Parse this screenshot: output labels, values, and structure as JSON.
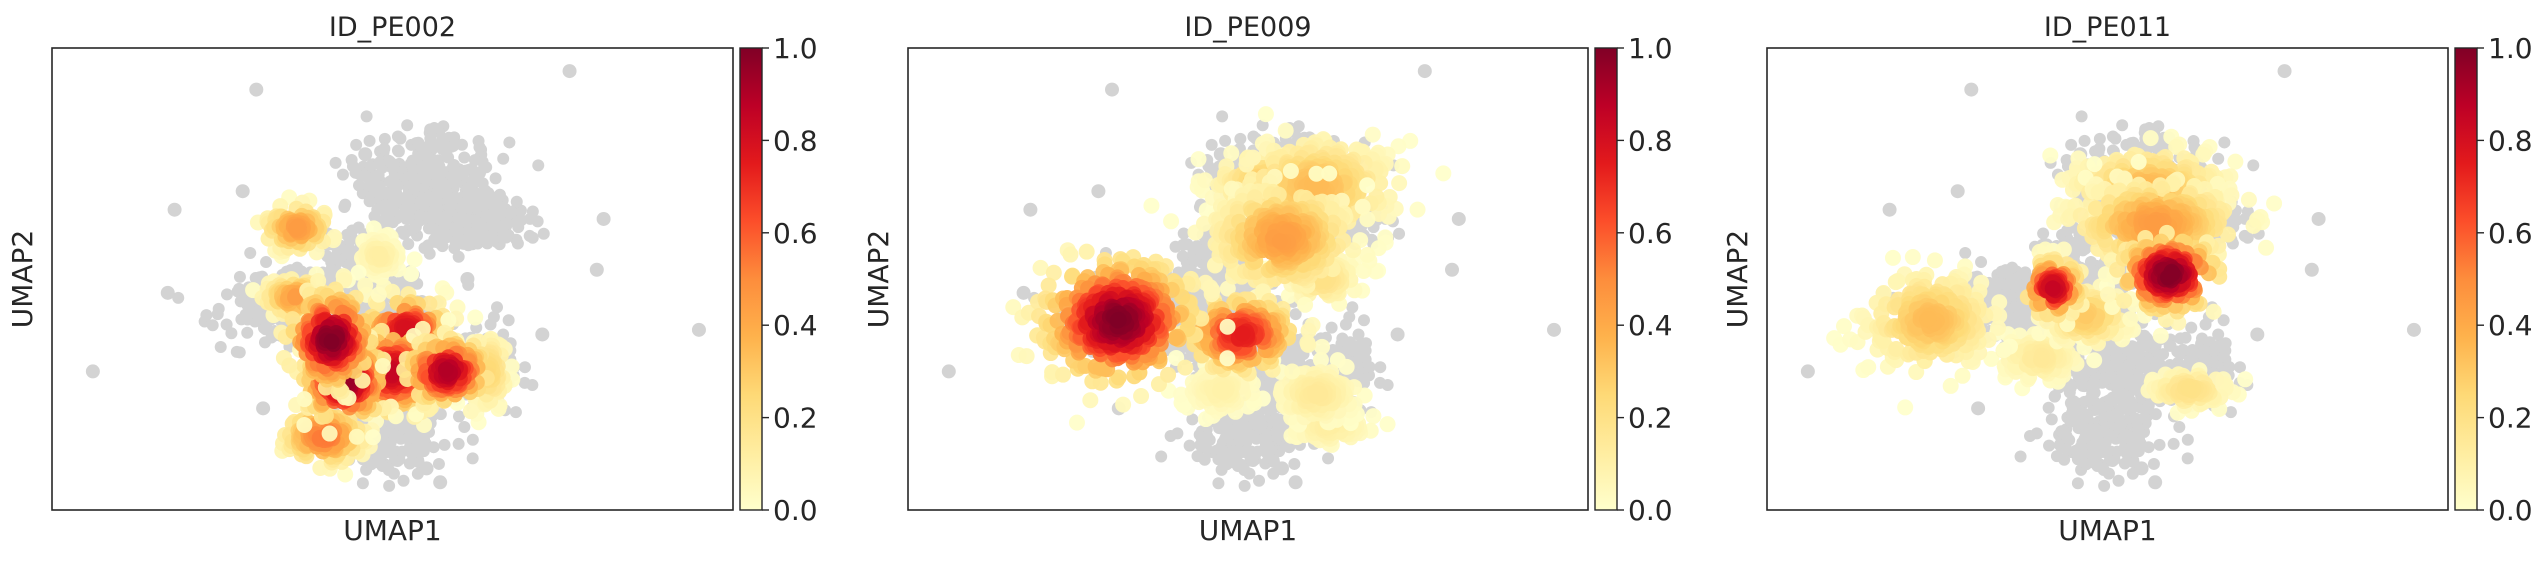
{
  "chart_data": [
    {
      "type": "scatter",
      "title": "ID_PE002",
      "xlabel": "UMAP1",
      "ylabel": "UMAP2",
      "ticks_shown": false,
      "background_color": "#d3d3d3",
      "colormap": "YlOrRd",
      "colorbar": {
        "ticks": [
          "0.0",
          "0.2",
          "0.4",
          "0.6",
          "0.8",
          "1.0"
        ],
        "range": [
          0,
          1
        ]
      },
      "density_blobs": [
        {
          "x": 0.41,
          "y": 0.37,
          "rx": 0.06,
          "ry": 0.1,
          "value": 1.0
        },
        {
          "x": 0.43,
          "y": 0.28,
          "rx": 0.06,
          "ry": 0.09,
          "value": 0.95
        },
        {
          "x": 0.5,
          "y": 0.3,
          "rx": 0.07,
          "ry": 0.09,
          "value": 0.85
        },
        {
          "x": 0.52,
          "y": 0.39,
          "rx": 0.06,
          "ry": 0.07,
          "value": 0.8
        },
        {
          "x": 0.58,
          "y": 0.3,
          "rx": 0.06,
          "ry": 0.07,
          "value": 0.9
        },
        {
          "x": 0.4,
          "y": 0.16,
          "rx": 0.06,
          "ry": 0.06,
          "value": 0.55
        },
        {
          "x": 0.36,
          "y": 0.46,
          "rx": 0.05,
          "ry": 0.04,
          "value": 0.45
        },
        {
          "x": 0.36,
          "y": 0.61,
          "rx": 0.05,
          "ry": 0.05,
          "value": 0.45
        },
        {
          "x": 0.48,
          "y": 0.55,
          "rx": 0.03,
          "ry": 0.04,
          "value": 0.12
        },
        {
          "x": 0.64,
          "y": 0.3,
          "rx": 0.03,
          "ry": 0.08,
          "value": 0.25
        }
      ]
    },
    {
      "type": "scatter",
      "title": "ID_PE009",
      "xlabel": "UMAP1",
      "ylabel": "UMAP2",
      "ticks_shown": false,
      "background_color": "#d3d3d3",
      "colormap": "YlOrRd",
      "colorbar": {
        "ticks": [
          "0.0",
          "0.2",
          "0.4",
          "0.6",
          "0.8",
          "1.0"
        ],
        "range": [
          0,
          1
        ]
      },
      "density_blobs": [
        {
          "x": 0.31,
          "y": 0.41,
          "rx": 0.11,
          "ry": 0.13,
          "value": 1.0
        },
        {
          "x": 0.49,
          "y": 0.38,
          "rx": 0.08,
          "ry": 0.08,
          "value": 0.75
        },
        {
          "x": 0.55,
          "y": 0.59,
          "rx": 0.1,
          "ry": 0.11,
          "value": 0.45
        },
        {
          "x": 0.6,
          "y": 0.7,
          "rx": 0.11,
          "ry": 0.1,
          "value": 0.35
        },
        {
          "x": 0.53,
          "y": 0.71,
          "rx": 0.08,
          "ry": 0.06,
          "value": 0.3
        },
        {
          "x": 0.61,
          "y": 0.5,
          "rx": 0.05,
          "ry": 0.05,
          "value": 0.2
        },
        {
          "x": 0.6,
          "y": 0.25,
          "rx": 0.06,
          "ry": 0.06,
          "value": 0.15
        },
        {
          "x": 0.62,
          "y": 0.18,
          "rx": 0.06,
          "ry": 0.04,
          "value": 0.12
        },
        {
          "x": 0.46,
          "y": 0.26,
          "rx": 0.05,
          "ry": 0.05,
          "value": 0.1
        }
      ]
    },
    {
      "type": "scatter",
      "title": "ID_PE011",
      "xlabel": "UMAP1",
      "ylabel": "UMAP2",
      "ticks_shown": false,
      "background_color": "#d3d3d3",
      "colormap": "YlOrRd",
      "colorbar": {
        "ticks": [
          "0.0",
          "0.2",
          "0.4",
          "0.6",
          "0.8",
          "1.0"
        ],
        "range": [
          0,
          1
        ]
      },
      "density_blobs": [
        {
          "x": 0.59,
          "y": 0.51,
          "rx": 0.07,
          "ry": 0.08,
          "value": 1.0
        },
        {
          "x": 0.42,
          "y": 0.48,
          "rx": 0.04,
          "ry": 0.06,
          "value": 0.85
        },
        {
          "x": 0.57,
          "y": 0.62,
          "rx": 0.12,
          "ry": 0.09,
          "value": 0.45
        },
        {
          "x": 0.56,
          "y": 0.7,
          "rx": 0.11,
          "ry": 0.08,
          "value": 0.35
        },
        {
          "x": 0.24,
          "y": 0.41,
          "rx": 0.09,
          "ry": 0.1,
          "value": 0.35
        },
        {
          "x": 0.47,
          "y": 0.42,
          "rx": 0.06,
          "ry": 0.06,
          "value": 0.3
        },
        {
          "x": 0.62,
          "y": 0.26,
          "rx": 0.06,
          "ry": 0.04,
          "value": 0.2
        },
        {
          "x": 0.4,
          "y": 0.33,
          "rx": 0.06,
          "ry": 0.05,
          "value": 0.15
        }
      ]
    }
  ]
}
